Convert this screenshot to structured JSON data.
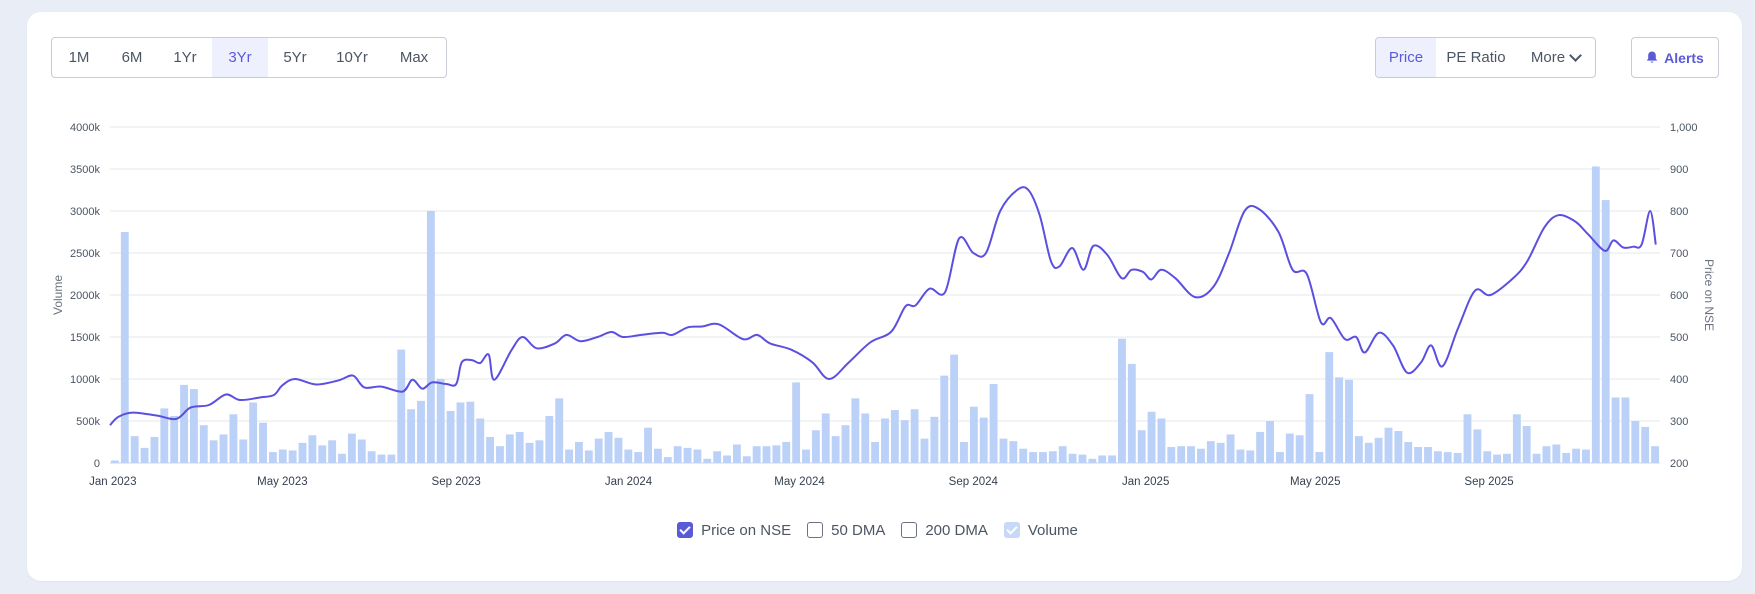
{
  "range_buttons": [
    {
      "label": "1M",
      "active": false
    },
    {
      "label": "6M",
      "active": false
    },
    {
      "label": "1Yr",
      "active": false
    },
    {
      "label": "3Yr",
      "active": true
    },
    {
      "label": "5Yr",
      "active": false
    },
    {
      "label": "10Yr",
      "active": false
    },
    {
      "label": "Max",
      "active": false
    }
  ],
  "metric_buttons": {
    "price": "Price",
    "pe_ratio": "PE Ratio",
    "more": "More",
    "active": "price"
  },
  "alerts_label": "Alerts",
  "icons": {
    "alerts": "bell-icon",
    "more": "chevron-down-icon"
  },
  "colors": {
    "accent": "#5b5ad6",
    "price_line": "#5b4fe0",
    "volume_bar": "#bcd1f7"
  },
  "legend": [
    {
      "label": "Price on NSE",
      "checked": true,
      "key": "price"
    },
    {
      "label": "50 DMA",
      "checked": false,
      "key": "dma50"
    },
    {
      "label": "200 DMA",
      "checked": false,
      "key": "dma200"
    },
    {
      "label": "Volume",
      "checked": true,
      "key": "volume"
    }
  ],
  "chart_data": {
    "type": "line+bar",
    "x_range": [
      "2022-12-30",
      "2025-12-31"
    ],
    "x_ticks": [
      {
        "label": "Jan 2023",
        "date": "2023-01-01"
      },
      {
        "label": "May 2023",
        "date": "2023-05-01"
      },
      {
        "label": "Sep 2023",
        "date": "2023-09-01"
      },
      {
        "label": "Jan 2024",
        "date": "2024-01-01"
      },
      {
        "label": "May 2024",
        "date": "2024-05-01"
      },
      {
        "label": "Sep 2024",
        "date": "2024-09-01"
      },
      {
        "label": "Jan 2025",
        "date": "2025-01-01"
      },
      {
        "label": "May 2025",
        "date": "2025-05-01"
      },
      {
        "label": "Sep 2025",
        "date": "2025-09-01"
      }
    ],
    "y_left": {
      "label": "Volume",
      "range": [
        0,
        4000000
      ],
      "ticks": [
        "0",
        "500k",
        "1000k",
        "1500k",
        "2000k",
        "2500k",
        "3000k",
        "3500k",
        "4000k"
      ]
    },
    "y_right": {
      "label": "Price on NSE",
      "range": [
        200,
        1000
      ],
      "ticks": [
        "200",
        "300",
        "400",
        "500",
        "600",
        "700",
        "800",
        "900",
        "1,000"
      ]
    },
    "grid": true,
    "legend_position": "bottom",
    "series": [
      {
        "name": "Price on NSE",
        "type": "line",
        "axis": "right",
        "points": [
          [
            "2022-12-30",
            290
          ],
          [
            "2023-01-05",
            310
          ],
          [
            "2023-01-15",
            320
          ],
          [
            "2023-02-01",
            313
          ],
          [
            "2023-02-15",
            305
          ],
          [
            "2023-02-25",
            332
          ],
          [
            "2023-03-10",
            338
          ],
          [
            "2023-03-22",
            363
          ],
          [
            "2023-04-01",
            350
          ],
          [
            "2023-04-15",
            356
          ],
          [
            "2023-04-25",
            362
          ],
          [
            "2023-05-01",
            385
          ],
          [
            "2023-05-10",
            400
          ],
          [
            "2023-05-25",
            387
          ],
          [
            "2023-06-10",
            397
          ],
          [
            "2023-06-20",
            408
          ],
          [
            "2023-06-28",
            380
          ],
          [
            "2023-07-10",
            382
          ],
          [
            "2023-07-25",
            370
          ],
          [
            "2023-08-01",
            398
          ],
          [
            "2023-08-08",
            377
          ],
          [
            "2023-08-15",
            392
          ],
          [
            "2023-08-25",
            388
          ],
          [
            "2023-09-01",
            388
          ],
          [
            "2023-09-05",
            440
          ],
          [
            "2023-09-12",
            445
          ],
          [
            "2023-09-18",
            438
          ],
          [
            "2023-09-24",
            458
          ],
          [
            "2023-09-28",
            398
          ],
          [
            "2023-10-10",
            468
          ],
          [
            "2023-10-18",
            500
          ],
          [
            "2023-10-28",
            473
          ],
          [
            "2023-11-10",
            485
          ],
          [
            "2023-11-18",
            505
          ],
          [
            "2023-11-28",
            490
          ],
          [
            "2023-12-10",
            500
          ],
          [
            "2023-12-20",
            512
          ],
          [
            "2023-12-28",
            500
          ],
          [
            "2024-01-10",
            505
          ],
          [
            "2024-01-25",
            510
          ],
          [
            "2024-02-01",
            505
          ],
          [
            "2024-02-12",
            523
          ],
          [
            "2024-02-22",
            525
          ],
          [
            "2024-03-05",
            530
          ],
          [
            "2024-03-22",
            495
          ],
          [
            "2024-04-01",
            505
          ],
          [
            "2024-04-10",
            485
          ],
          [
            "2024-04-25",
            470
          ],
          [
            "2024-05-10",
            440
          ],
          [
            "2024-05-22",
            400
          ],
          [
            "2024-06-05",
            440
          ],
          [
            "2024-06-20",
            487
          ],
          [
            "2024-07-05",
            513
          ],
          [
            "2024-07-15",
            573
          ],
          [
            "2024-07-22",
            575
          ],
          [
            "2024-08-01",
            615
          ],
          [
            "2024-08-12",
            607
          ],
          [
            "2024-08-22",
            735
          ],
          [
            "2024-09-01",
            700
          ],
          [
            "2024-09-10",
            700
          ],
          [
            "2024-09-20",
            800
          ],
          [
            "2024-10-02",
            850
          ],
          [
            "2024-10-10",
            850
          ],
          [
            "2024-10-18",
            790
          ],
          [
            "2024-10-26",
            680
          ],
          [
            "2024-11-01",
            668
          ],
          [
            "2024-11-10",
            712
          ],
          [
            "2024-11-18",
            660
          ],
          [
            "2024-11-25",
            717
          ],
          [
            "2024-12-05",
            695
          ],
          [
            "2024-12-15",
            640
          ],
          [
            "2024-12-22",
            660
          ],
          [
            "2024-12-30",
            655
          ],
          [
            "2025-01-05",
            637
          ],
          [
            "2025-01-12",
            660
          ],
          [
            "2025-01-22",
            640
          ],
          [
            "2025-02-05",
            595
          ],
          [
            "2025-02-18",
            620
          ],
          [
            "2025-03-01",
            700
          ],
          [
            "2025-03-12",
            800
          ],
          [
            "2025-03-22",
            805
          ],
          [
            "2025-04-05",
            750
          ],
          [
            "2025-04-15",
            660
          ],
          [
            "2025-04-25",
            650
          ],
          [
            "2025-05-05",
            535
          ],
          [
            "2025-05-12",
            545
          ],
          [
            "2025-05-22",
            495
          ],
          [
            "2025-05-30",
            500
          ],
          [
            "2025-06-05",
            463
          ],
          [
            "2025-06-15",
            510
          ],
          [
            "2025-06-25",
            480
          ],
          [
            "2025-07-05",
            415
          ],
          [
            "2025-07-15",
            440
          ],
          [
            "2025-07-22",
            480
          ],
          [
            "2025-07-30",
            430
          ],
          [
            "2025-08-10",
            520
          ],
          [
            "2025-08-22",
            610
          ],
          [
            "2025-09-02",
            600
          ],
          [
            "2025-09-18",
            640
          ],
          [
            "2025-09-28",
            680
          ],
          [
            "2025-10-10",
            760
          ],
          [
            "2025-10-20",
            790
          ],
          [
            "2025-11-01",
            775
          ],
          [
            "2025-11-10",
            745
          ],
          [
            "2025-11-22",
            705
          ],
          [
            "2025-11-28",
            730
          ],
          [
            "2025-12-05",
            713
          ],
          [
            "2025-12-12",
            715
          ],
          [
            "2025-12-18",
            720
          ],
          [
            "2025-12-24",
            800
          ],
          [
            "2025-12-28",
            720
          ]
        ]
      },
      {
        "name": "Volume",
        "type": "bar",
        "axis": "left",
        "values": [
          30000,
          2750000,
          320000,
          180000,
          310000,
          650000,
          560000,
          930000,
          880000,
          450000,
          270000,
          340000,
          580000,
          280000,
          720000,
          480000,
          130000,
          160000,
          150000,
          240000,
          330000,
          210000,
          270000,
          110000,
          350000,
          280000,
          140000,
          100000,
          100000,
          1350000,
          640000,
          740000,
          3000000,
          1000000,
          620000,
          720000,
          730000,
          530000,
          310000,
          200000,
          340000,
          370000,
          240000,
          270000,
          560000,
          770000,
          160000,
          250000,
          150000,
          290000,
          370000,
          300000,
          160000,
          130000,
          420000,
          170000,
          70000,
          200000,
          180000,
          160000,
          50000,
          140000,
          90000,
          220000,
          80000,
          200000,
          200000,
          210000,
          250000,
          960000,
          160000,
          390000,
          590000,
          320000,
          450000,
          770000,
          590000,
          250000,
          530000,
          630000,
          510000,
          640000,
          290000,
          550000,
          1040000,
          1290000,
          250000,
          670000,
          540000,
          940000,
          290000,
          260000,
          170000,
          130000,
          130000,
          140000,
          200000,
          110000,
          100000,
          50000,
          90000,
          90000,
          1480000,
          1180000,
          390000,
          610000,
          530000,
          190000,
          200000,
          200000,
          170000,
          260000,
          240000,
          340000,
          160000,
          150000,
          370000,
          500000,
          130000,
          350000,
          330000,
          820000,
          130000,
          1320000,
          1020000,
          990000,
          320000,
          240000,
          300000,
          420000,
          380000,
          250000,
          190000,
          190000,
          140000,
          130000,
          120000,
          580000,
          400000,
          140000,
          100000,
          110000,
          580000,
          440000,
          110000,
          200000,
          220000,
          120000,
          170000,
          160000,
          3530000,
          3130000,
          780000,
          780000,
          500000,
          430000,
          200000
        ]
      }
    ]
  }
}
